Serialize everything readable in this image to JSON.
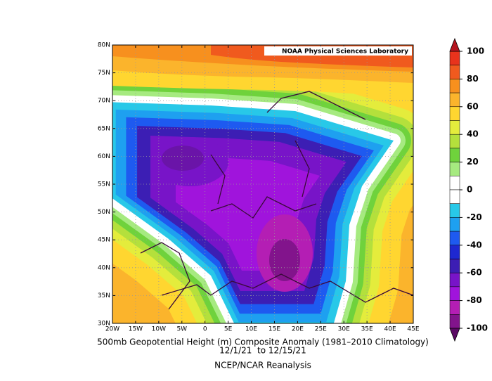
{
  "map": {
    "credit": "NOAA Physical Sciences Laboratory",
    "title": "500mb Geopotential Height (m) Composite Anomaly (1981–2010 Climatology)",
    "dates": "12/1/21  to 12/15/21",
    "source": "NCEP/NCAR Reanalysis",
    "lat_labels": [
      "80N",
      "75N",
      "70N",
      "65N",
      "60N",
      "55N",
      "50N",
      "45N",
      "40N",
      "35N",
      "30N"
    ],
    "lon_labels": [
      "20W",
      "15W",
      "10W",
      "5W",
      "0",
      "5E",
      "10E",
      "15E",
      "20E",
      "25E",
      "30E",
      "35E",
      "40E",
      "45E"
    ],
    "colorbar": {
      "ticks": [
        100,
        80,
        60,
        40,
        20,
        0,
        -20,
        -40,
        -60,
        -80,
        -100
      ],
      "colors": [
        "#e8331c",
        "#f05a1e",
        "#f7901e",
        "#fbb42c",
        "#ffd630",
        "#e4ec3c",
        "#b4e03c",
        "#6fd23c",
        "#a6ea80",
        "#ffffff",
        "#ffffff",
        "#28c8e8",
        "#1ea0f0",
        "#1e5af0",
        "#1e28d0",
        "#3c1eb4",
        "#7814c8",
        "#a014dc",
        "#b41eb4",
        "#82148c"
      ],
      "over_color": "#b4141e",
      "under_color": "#5a0a64"
    }
  }
}
